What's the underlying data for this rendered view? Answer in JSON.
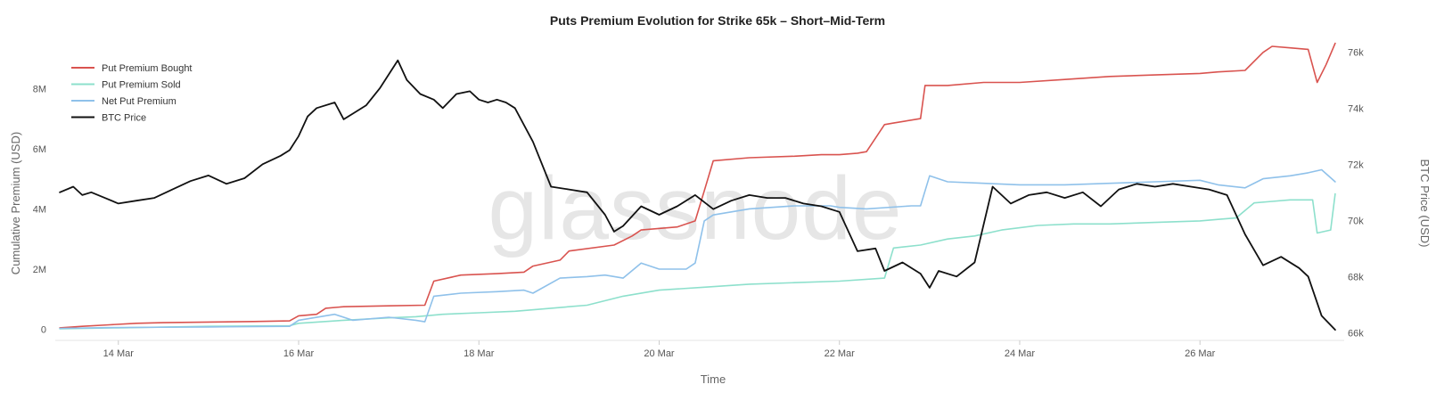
{
  "chart_data": {
    "type": "line",
    "title": "Puts Premium Evolution for Strike 65k – Short–Mid-Term",
    "xlabel": "Time",
    "ylabel_left": "Cumulative Premium (USD)",
    "ylabel_right": "BTC Price (USD)",
    "watermark": "glassnode",
    "xlim": [
      13.3,
      27.6
    ],
    "ylim_left": [
      -0.25,
      9.4
    ],
    "ylim_right": [
      65.85,
      76.2
    ],
    "x_ticks": [
      {
        "v": 14,
        "label": "14 Mar"
      },
      {
        "v": 16,
        "label": "16 Mar"
      },
      {
        "v": 18,
        "label": "18 Mar"
      },
      {
        "v": 20,
        "label": "20 Mar"
      },
      {
        "v": 22,
        "label": "22 Mar"
      },
      {
        "v": 24,
        "label": "24 Mar"
      },
      {
        "v": 26,
        "label": "26 Mar"
      }
    ],
    "y_left_ticks": [
      {
        "v": 0,
        "label": "0"
      },
      {
        "v": 2,
        "label": "2M"
      },
      {
        "v": 4,
        "label": "4M"
      },
      {
        "v": 6,
        "label": "6M"
      },
      {
        "v": 8,
        "label": "8M"
      }
    ],
    "y_right_ticks": [
      {
        "v": 66,
        "label": "66k"
      },
      {
        "v": 68,
        "label": "68k"
      },
      {
        "v": 70,
        "label": "70k"
      },
      {
        "v": 72,
        "label": "72k"
      },
      {
        "v": 74,
        "label": "74k"
      },
      {
        "v": 76,
        "label": "76k"
      }
    ],
    "legend_position": "top-left",
    "series": [
      {
        "name": "Put Premium Bought",
        "color": "#d9534f",
        "axis": "left",
        "x": [
          13.35,
          13.6,
          13.9,
          14.2,
          14.5,
          15.0,
          15.5,
          15.9,
          16.0,
          16.2,
          16.3,
          16.5,
          17.0,
          17.4,
          17.5,
          17.8,
          18.2,
          18.5,
          18.6,
          18.9,
          19.0,
          19.5,
          19.7,
          19.8,
          20.2,
          20.4,
          20.5,
          20.6,
          21.0,
          21.5,
          21.8,
          22.0,
          22.2,
          22.3,
          22.5,
          22.6,
          22.9,
          22.95,
          23.2,
          23.6,
          24.0,
          24.5,
          25.0,
          25.5,
          26.0,
          26.2,
          26.5,
          26.7,
          26.8,
          27.0,
          27.2,
          27.3,
          27.4,
          27.5
        ],
        "values": [
          0.05,
          0.1,
          0.15,
          0.2,
          0.22,
          0.24,
          0.26,
          0.28,
          0.45,
          0.5,
          0.7,
          0.75,
          0.78,
          0.8,
          1.6,
          1.8,
          1.85,
          1.9,
          2.1,
          2.3,
          2.6,
          2.8,
          3.1,
          3.3,
          3.4,
          3.6,
          4.6,
          5.6,
          5.7,
          5.75,
          5.8,
          5.8,
          5.85,
          5.9,
          6.8,
          6.85,
          7.0,
          8.1,
          8.1,
          8.2,
          8.2,
          8.3,
          8.4,
          8.45,
          8.5,
          8.55,
          8.6,
          9.2,
          9.4,
          9.35,
          9.3,
          8.2,
          8.8,
          9.5
        ]
      },
      {
        "name": "Put Premium Sold",
        "color": "#8de0cc",
        "axis": "left",
        "x": [
          13.35,
          14.0,
          15.0,
          15.9,
          16.0,
          16.5,
          17.0,
          17.3,
          17.6,
          18.0,
          18.4,
          18.8,
          19.2,
          19.6,
          20.0,
          20.5,
          21.0,
          21.5,
          22.0,
          22.5,
          22.6,
          22.9,
          23.2,
          23.5,
          23.8,
          24.2,
          24.6,
          25.0,
          25.5,
          26.0,
          26.2,
          26.4,
          26.6,
          26.8,
          27.0,
          27.25,
          27.3,
          27.45,
          27.5
        ],
        "values": [
          0.02,
          0.05,
          0.1,
          0.12,
          0.2,
          0.3,
          0.38,
          0.42,
          0.5,
          0.55,
          0.6,
          0.7,
          0.8,
          1.1,
          1.3,
          1.4,
          1.5,
          1.55,
          1.6,
          1.7,
          2.7,
          2.8,
          3.0,
          3.1,
          3.3,
          3.45,
          3.5,
          3.5,
          3.55,
          3.6,
          3.65,
          3.7,
          4.2,
          4.25,
          4.3,
          4.3,
          3.2,
          3.3,
          4.5
        ]
      },
      {
        "name": "Net Put Premium",
        "color": "#8fc1ea",
        "axis": "left",
        "x": [
          13.35,
          14.0,
          15.0,
          15.9,
          16.0,
          16.4,
          16.6,
          17.0,
          17.3,
          17.4,
          17.5,
          17.8,
          18.2,
          18.5,
          18.6,
          18.9,
          19.2,
          19.4,
          19.6,
          19.8,
          20.0,
          20.3,
          20.4,
          20.5,
          20.6,
          21.0,
          21.5,
          21.9,
          22.0,
          22.3,
          22.8,
          22.9,
          23.0,
          23.2,
          23.6,
          24.0,
          24.5,
          25.0,
          25.5,
          26.0,
          26.2,
          26.5,
          26.7,
          27.0,
          27.2,
          27.35,
          27.5
        ],
        "values": [
          0.03,
          0.06,
          0.08,
          0.1,
          0.3,
          0.5,
          0.3,
          0.4,
          0.3,
          0.25,
          1.1,
          1.2,
          1.25,
          1.3,
          1.2,
          1.7,
          1.75,
          1.8,
          1.7,
          2.2,
          2.0,
          2.0,
          2.2,
          3.6,
          3.8,
          4.0,
          4.1,
          4.1,
          4.05,
          4.0,
          4.1,
          4.1,
          5.1,
          4.9,
          4.85,
          4.8,
          4.8,
          4.85,
          4.9,
          4.95,
          4.8,
          4.7,
          5.0,
          5.1,
          5.2,
          5.3,
          4.9
        ]
      },
      {
        "name": "BTC Price",
        "color": "#111111",
        "axis": "right",
        "x": [
          13.35,
          13.5,
          13.6,
          13.7,
          13.85,
          14.0,
          14.2,
          14.4,
          14.6,
          14.8,
          15.0,
          15.2,
          15.4,
          15.6,
          15.8,
          15.9,
          16.0,
          16.1,
          16.2,
          16.4,
          16.5,
          16.6,
          16.75,
          16.9,
          17.1,
          17.2,
          17.35,
          17.5,
          17.6,
          17.75,
          17.9,
          18.0,
          18.1,
          18.2,
          18.3,
          18.4,
          18.6,
          18.8,
          19.0,
          19.2,
          19.4,
          19.5,
          19.6,
          19.8,
          20.0,
          20.2,
          20.4,
          20.6,
          20.8,
          21.0,
          21.2,
          21.4,
          21.6,
          21.8,
          22.0,
          22.2,
          22.4,
          22.5,
          22.7,
          22.9,
          23.0,
          23.1,
          23.3,
          23.5,
          23.7,
          23.9,
          24.1,
          24.3,
          24.5,
          24.7,
          24.9,
          25.1,
          25.3,
          25.5,
          25.7,
          25.9,
          26.1,
          26.3,
          26.5,
          26.7,
          26.9,
          27.1,
          27.2,
          27.35,
          27.5
        ],
        "values": [
          71.0,
          71.2,
          70.9,
          71.0,
          70.8,
          70.6,
          70.7,
          70.8,
          71.1,
          71.4,
          71.6,
          71.3,
          71.5,
          72.0,
          72.3,
          72.5,
          73.0,
          73.7,
          74.0,
          74.2,
          73.6,
          73.8,
          74.1,
          74.7,
          75.7,
          75.0,
          74.5,
          74.3,
          74.0,
          74.5,
          74.6,
          74.3,
          74.2,
          74.3,
          74.2,
          74.0,
          72.8,
          71.2,
          71.1,
          71.0,
          70.2,
          69.6,
          69.8,
          70.5,
          70.2,
          70.5,
          70.9,
          70.4,
          70.7,
          70.9,
          70.8,
          70.8,
          70.6,
          70.5,
          70.3,
          68.9,
          69.0,
          68.2,
          68.5,
          68.1,
          67.6,
          68.2,
          68.0,
          68.5,
          71.2,
          70.6,
          70.9,
          71.0,
          70.8,
          71.0,
          70.5,
          71.1,
          71.3,
          71.2,
          71.3,
          71.2,
          71.1,
          70.9,
          69.5,
          68.4,
          68.7,
          68.3,
          68.0,
          66.6,
          66.1
        ]
      }
    ]
  }
}
